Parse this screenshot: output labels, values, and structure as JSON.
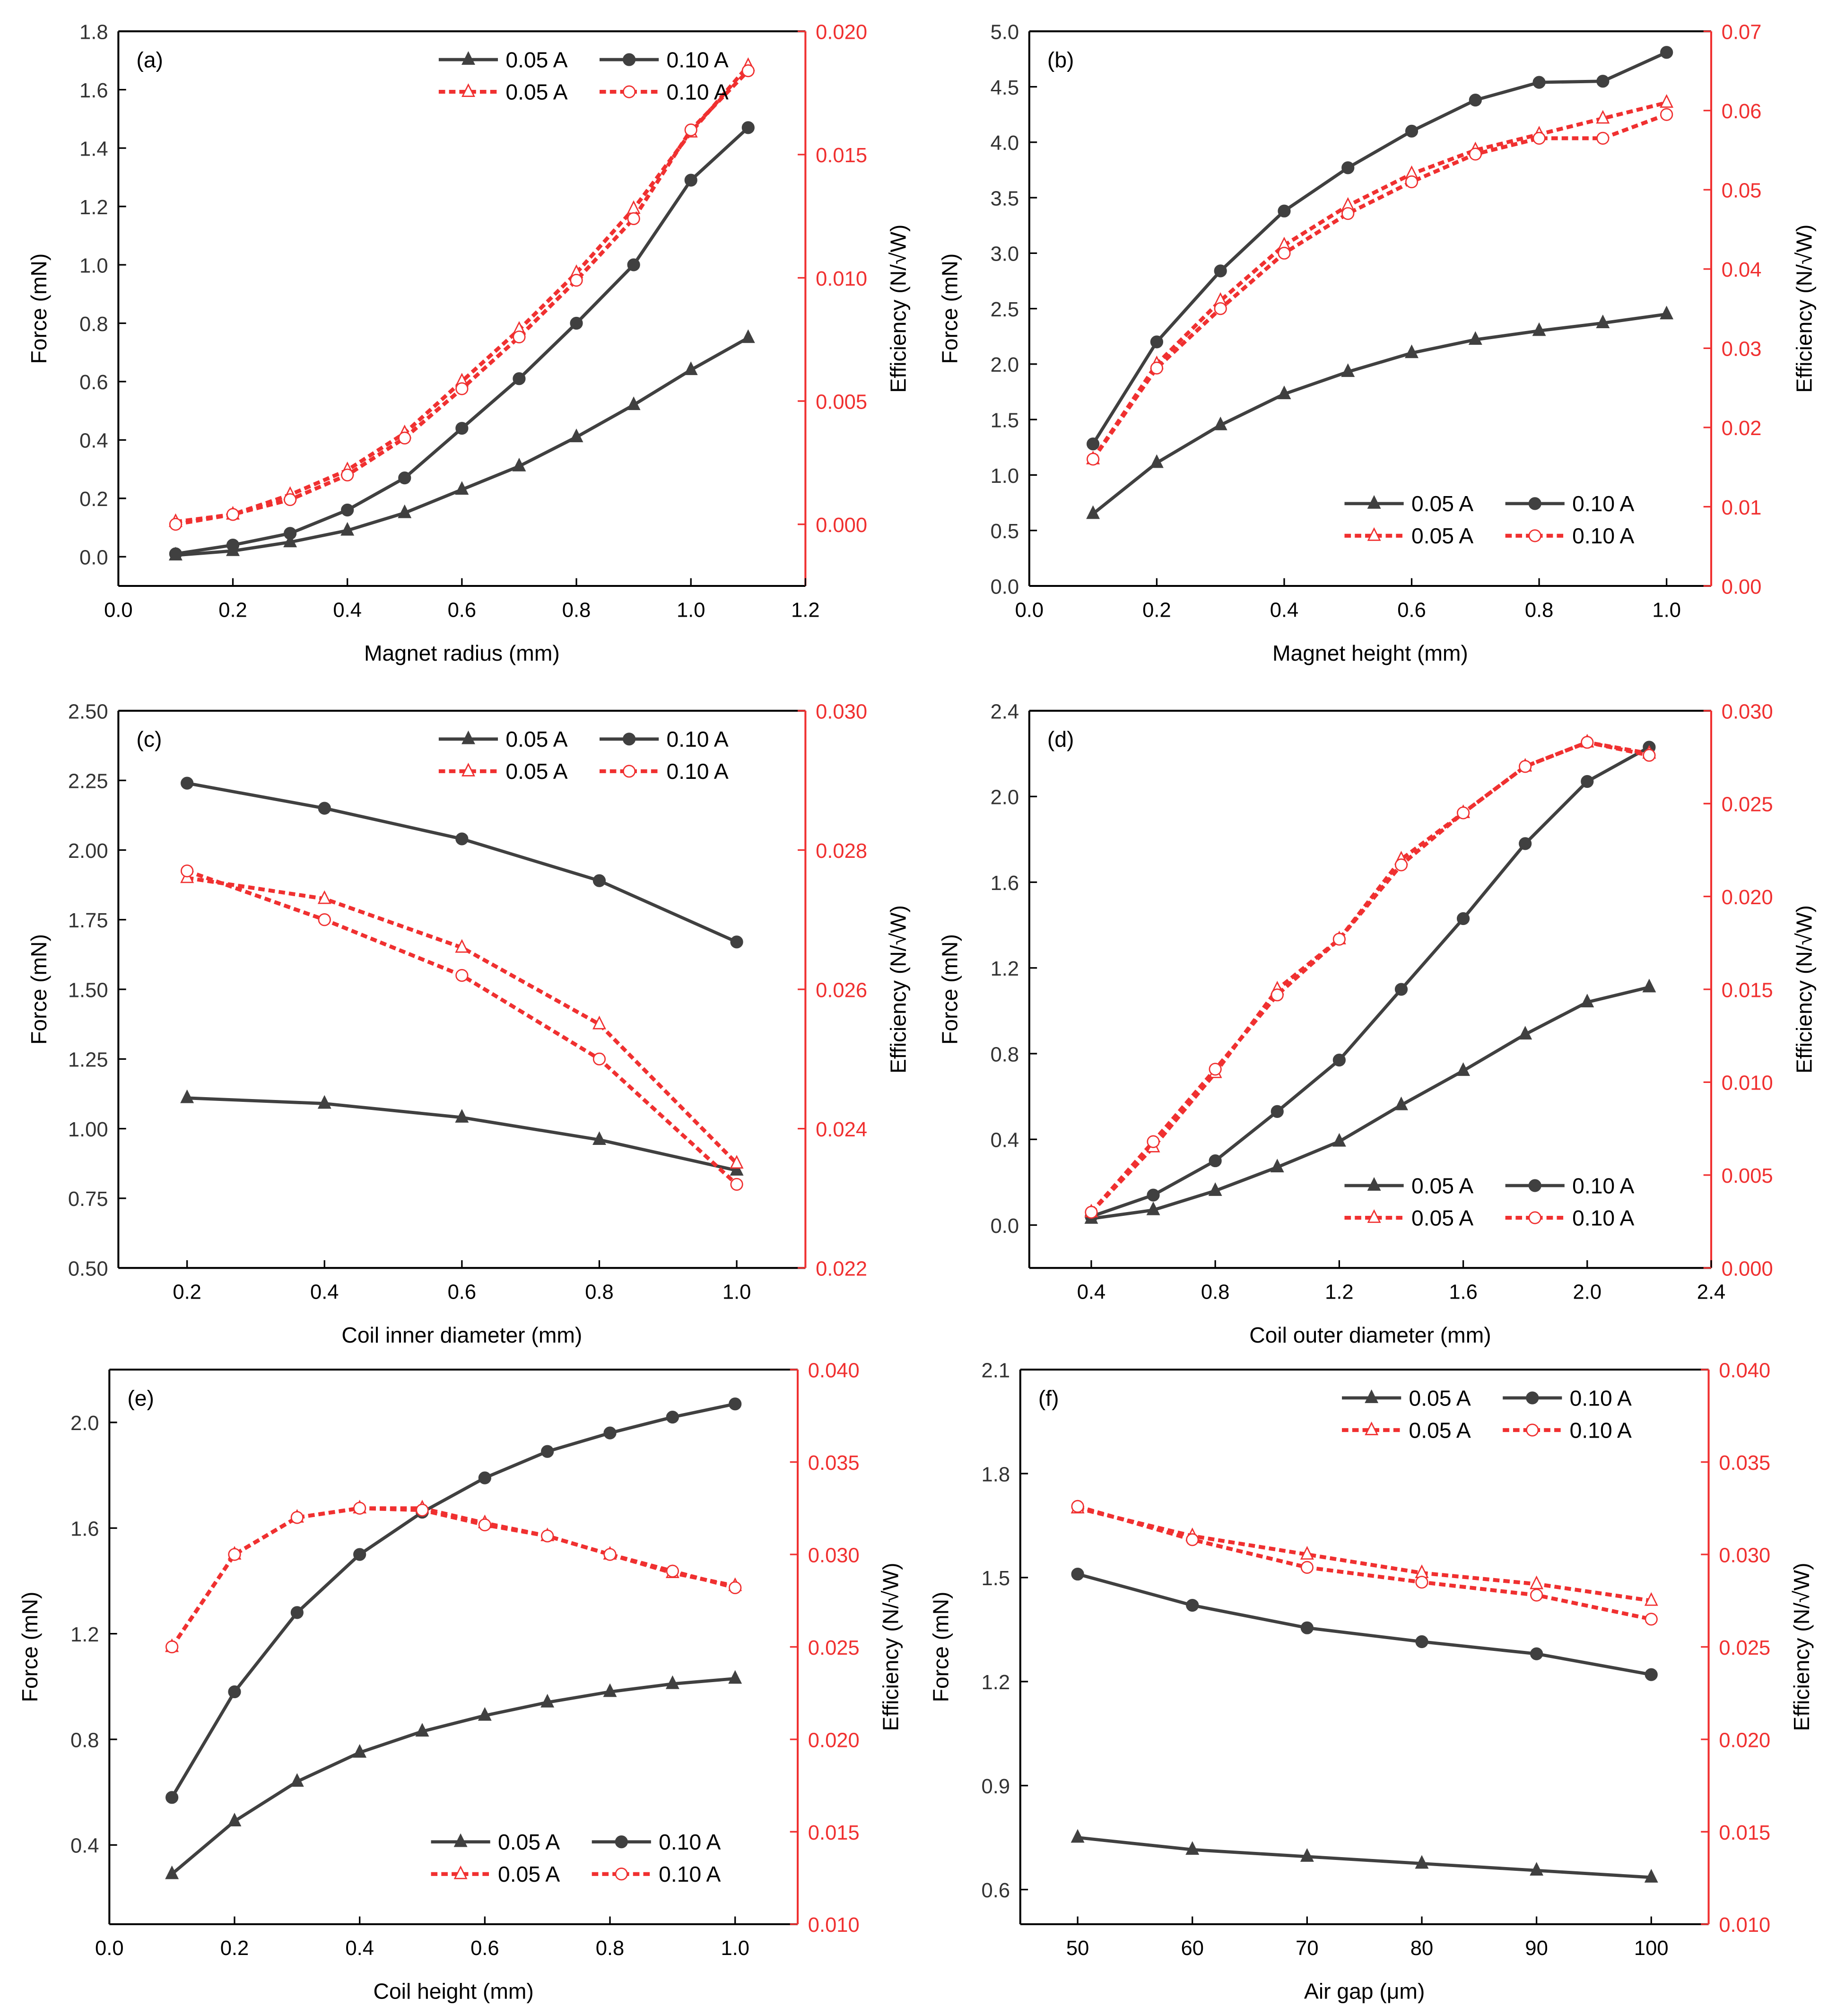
{
  "colors": {
    "force": "#404040",
    "efficiency": "#f03030",
    "axis_right": "#f03030"
  },
  "chart_data": [
    {
      "type": "line",
      "panel_label": "(a)",
      "xlabel": "Magnet radius (mm)",
      "ylabel": "Force (mN)",
      "y2label": "Efficiency (N/√W)",
      "xlim": [
        0,
        1.2
      ],
      "xticks": [
        "0.0",
        "0.2",
        "0.4",
        "0.6",
        "0.8",
        "1.0",
        "1.2"
      ],
      "ylim": [
        -0.1,
        1.8
      ],
      "yticks": [
        "0.0",
        "0.2",
        "0.4",
        "0.6",
        "0.8",
        "1.0",
        "1.2",
        "1.4",
        "1.6",
        "1.8"
      ],
      "y2lim": [
        -0.0025,
        0.02
      ],
      "y2ticks": [
        "0.000",
        "0.005",
        "0.010",
        "0.015",
        "0.020"
      ],
      "legend": "top-right",
      "x": [
        0.1,
        0.2,
        0.3,
        0.4,
        0.5,
        0.6,
        0.7,
        0.8,
        0.9,
        1.0,
        1.1
      ],
      "series": [
        {
          "name": "0.05 A",
          "axis": "left",
          "marker": "triangle",
          "values": [
            0.005,
            0.02,
            0.05,
            0.09,
            0.15,
            0.23,
            0.31,
            0.41,
            0.52,
            0.64,
            0.75
          ]
        },
        {
          "name": "0.10 A",
          "axis": "left",
          "marker": "circle",
          "values": [
            0.01,
            0.04,
            0.08,
            0.16,
            0.27,
            0.44,
            0.61,
            0.8,
            1.0,
            1.29,
            1.47
          ]
        },
        {
          "name": "0.05 A",
          "axis": "right",
          "marker": "triangle-open",
          "values": [
            0.0001,
            0.0004,
            0.0012,
            0.0022,
            0.0037,
            0.0058,
            0.0079,
            0.0102,
            0.0128,
            0.0159,
            0.0186
          ]
        },
        {
          "name": "0.10 A",
          "axis": "right",
          "marker": "circle-open",
          "values": [
            0.0,
            0.0004,
            0.001,
            0.002,
            0.0035,
            0.0055,
            0.0076,
            0.0099,
            0.0124,
            0.016,
            0.0184
          ]
        }
      ]
    },
    {
      "type": "line",
      "panel_label": "(b)",
      "xlabel": "Magnet height (mm)",
      "ylabel": "Force (mN)",
      "y2label": "Efficiency (N/√W)",
      "xlim": [
        0,
        1.07
      ],
      "xticks": [
        "0.0",
        "0.2",
        "0.4",
        "0.6",
        "0.8",
        "1.0"
      ],
      "ylim": [
        0,
        5.0
      ],
      "yticks": [
        "0.0",
        "0.5",
        "1.0",
        "1.5",
        "2.0",
        "2.5",
        "3.0",
        "3.5",
        "4.0",
        "4.5",
        "5.0"
      ],
      "y2lim": [
        0,
        0.07
      ],
      "y2ticks": [
        "0.00",
        "0.01",
        "0.02",
        "0.03",
        "0.04",
        "0.05",
        "0.06",
        "0.07"
      ],
      "legend": "bottom-right",
      "x": [
        0.1,
        0.2,
        0.3,
        0.4,
        0.5,
        0.6,
        0.7,
        0.8,
        0.9,
        1.0
      ],
      "series": [
        {
          "name": "0.05 A",
          "axis": "left",
          "marker": "triangle",
          "values": [
            0.65,
            1.11,
            1.45,
            1.73,
            1.93,
            2.1,
            2.22,
            2.3,
            2.37,
            2.45
          ]
        },
        {
          "name": "0.10 A",
          "axis": "left",
          "marker": "circle",
          "values": [
            1.28,
            2.2,
            2.84,
            3.38,
            3.77,
            4.1,
            4.38,
            4.54,
            4.55,
            4.81
          ]
        },
        {
          "name": "0.05 A",
          "axis": "right",
          "marker": "triangle-open",
          "values": [
            0.016,
            0.028,
            0.036,
            0.043,
            0.048,
            0.052,
            0.055,
            0.057,
            0.059,
            0.061
          ]
        },
        {
          "name": "0.10 A",
          "axis": "right",
          "marker": "circle-open",
          "values": [
            0.016,
            0.0275,
            0.035,
            0.042,
            0.047,
            0.051,
            0.0545,
            0.0565,
            0.0565,
            0.0595
          ]
        }
      ]
    },
    {
      "type": "line",
      "panel_label": "(c)",
      "xlabel": "Coil inner diameter (mm)",
      "ylabel": "Force (mN)",
      "y2label": "Efficiency (N/√W)",
      "xlim": [
        0.1,
        1.1
      ],
      "xticks": [
        "0.2",
        "0.4",
        "0.6",
        "0.8",
        "1.0"
      ],
      "ylim": [
        0.5,
        2.5
      ],
      "yticks": [
        "0.50",
        "0.75",
        "1.00",
        "1.25",
        "1.50",
        "1.75",
        "2.00",
        "2.25",
        "2.50"
      ],
      "y2lim": [
        0.022,
        0.03
      ],
      "y2ticks": [
        "0.022",
        "0.024",
        "0.026",
        "0.028",
        "0.030"
      ],
      "legend": "top-right",
      "x": [
        0.2,
        0.4,
        0.6,
        0.8,
        1.0
      ],
      "series": [
        {
          "name": "0.05 A",
          "axis": "left",
          "marker": "triangle",
          "values": [
            1.11,
            1.09,
            1.04,
            0.96,
            0.85
          ]
        },
        {
          "name": "0.10 A",
          "axis": "left",
          "marker": "circle",
          "values": [
            2.24,
            2.15,
            2.04,
            1.89,
            1.67
          ]
        },
        {
          "name": "0.05 A",
          "axis": "right",
          "marker": "triangle-open",
          "values": [
            0.0276,
            0.0273,
            0.0266,
            0.0255,
            0.0235
          ]
        },
        {
          "name": "0.10 A",
          "axis": "right",
          "marker": "circle-open",
          "values": [
            0.0277,
            0.027,
            0.0262,
            0.025,
            0.0232
          ]
        }
      ]
    },
    {
      "type": "line",
      "panel_label": "(d)",
      "xlabel": "Coil outer diameter (mm)",
      "ylabel": "Force (mN)",
      "y2label": "Efficiency (N/√W)",
      "xlim": [
        0.2,
        2.4
      ],
      "xticks": [
        "0.4",
        "0.8",
        "1.2",
        "1.6",
        "2.0",
        "2.4"
      ],
      "ylim": [
        -0.2,
        2.4
      ],
      "yticks": [
        "0.0",
        "0.4",
        "0.8",
        "1.2",
        "1.6",
        "2.0",
        "2.4"
      ],
      "y2lim": [
        0,
        0.03
      ],
      "y2ticks": [
        "0.000",
        "0.005",
        "0.010",
        "0.015",
        "0.020",
        "0.025",
        "0.030"
      ],
      "legend": "bottom-right",
      "x": [
        0.4,
        0.6,
        0.8,
        1.0,
        1.2,
        1.4,
        1.6,
        1.8,
        2.0,
        2.2
      ],
      "series": [
        {
          "name": "0.05 A",
          "axis": "left",
          "marker": "triangle",
          "values": [
            0.03,
            0.07,
            0.16,
            0.27,
            0.39,
            0.56,
            0.72,
            0.89,
            1.04,
            1.11
          ]
        },
        {
          "name": "0.10 A",
          "axis": "left",
          "marker": "circle",
          "values": [
            0.04,
            0.14,
            0.3,
            0.53,
            0.77,
            1.1,
            1.43,
            1.78,
            2.07,
            2.23
          ]
        },
        {
          "name": "0.05 A",
          "axis": "right",
          "marker": "triangle-open",
          "values": [
            0.003,
            0.0065,
            0.0105,
            0.015,
            0.0177,
            0.022,
            0.0245,
            0.027,
            0.0283,
            0.0277
          ]
        },
        {
          "name": "0.10 A",
          "axis": "right",
          "marker": "circle-open",
          "values": [
            0.003,
            0.0068,
            0.0107,
            0.0147,
            0.0177,
            0.0217,
            0.0245,
            0.027,
            0.0283,
            0.0276
          ]
        }
      ]
    },
    {
      "type": "line",
      "panel_label": "(e)",
      "xlabel": "Coil height (mm)",
      "ylabel": "Force (mN)",
      "y2label": "Efficiency (N/√W)",
      "xlim": [
        0,
        1.1
      ],
      "xticks": [
        "0.0",
        "0.2",
        "0.4",
        "0.6",
        "0.8",
        "1.0"
      ],
      "ylim": [
        0.1,
        2.2
      ],
      "yticks": [
        "0.4",
        "0.8",
        "1.2",
        "1.6",
        "2.0"
      ],
      "y2lim": [
        0.01,
        0.04
      ],
      "y2ticks": [
        "0.010",
        "0.015",
        "0.020",
        "0.025",
        "0.030",
        "0.035",
        "0.040"
      ],
      "legend": "bottom-right",
      "x": [
        0.1,
        0.2,
        0.3,
        0.4,
        0.5,
        0.6,
        0.7,
        0.8,
        0.9,
        1.0
      ],
      "series": [
        {
          "name": "0.05 A",
          "axis": "left",
          "marker": "triangle",
          "values": [
            0.29,
            0.49,
            0.64,
            0.75,
            0.83,
            0.89,
            0.94,
            0.98,
            1.01,
            1.03
          ]
        },
        {
          "name": "0.10 A",
          "axis": "left",
          "marker": "circle",
          "values": [
            0.58,
            0.98,
            1.28,
            1.5,
            1.66,
            1.79,
            1.89,
            1.96,
            2.02,
            2.07
          ]
        },
        {
          "name": "0.05 A",
          "axis": "right",
          "marker": "triangle-open",
          "values": [
            0.025,
            0.03,
            0.032,
            0.0325,
            0.0325,
            0.0317,
            0.031,
            0.03,
            0.029,
            0.0283
          ]
        },
        {
          "name": "0.10 A",
          "axis": "right",
          "marker": "circle-open",
          "values": [
            0.025,
            0.03,
            0.032,
            0.0325,
            0.0324,
            0.0316,
            0.031,
            0.03,
            0.0291,
            0.0282
          ]
        }
      ]
    },
    {
      "type": "line",
      "panel_label": "(f)",
      "xlabel": "Air gap (μm)",
      "ylabel": "Force (mN)",
      "y2label": "Efficiency (N/√W)",
      "xlim": [
        45,
        105
      ],
      "xticks": [
        "50",
        "60",
        "70",
        "80",
        "90",
        "100"
      ],
      "ylim": [
        0.5,
        2.1
      ],
      "yticks": [
        "0.6",
        "0.9",
        "1.2",
        "1.5",
        "1.8",
        "2.1"
      ],
      "y2lim": [
        0.01,
        0.04
      ],
      "y2ticks": [
        "0.010",
        "0.015",
        "0.020",
        "0.025",
        "0.030",
        "0.035",
        "0.040"
      ],
      "legend": "top-right",
      "x": [
        50,
        60,
        70,
        80,
        90,
        100
      ],
      "series": [
        {
          "name": "0.05 A",
          "axis": "left",
          "marker": "triangle",
          "values": [
            0.75,
            0.715,
            0.695,
            0.675,
            0.655,
            0.635
          ]
        },
        {
          "name": "0.10 A",
          "axis": "left",
          "marker": "circle",
          "values": [
            1.51,
            1.42,
            1.355,
            1.315,
            1.28,
            1.22
          ]
        },
        {
          "name": "0.05 A",
          "axis": "right",
          "marker": "triangle-open",
          "values": [
            0.0325,
            0.031,
            0.03,
            0.029,
            0.0284,
            0.0275
          ]
        },
        {
          "name": "0.10 A",
          "axis": "right",
          "marker": "circle-open",
          "values": [
            0.0326,
            0.0308,
            0.0293,
            0.0285,
            0.0278,
            0.0265
          ]
        }
      ]
    }
  ]
}
